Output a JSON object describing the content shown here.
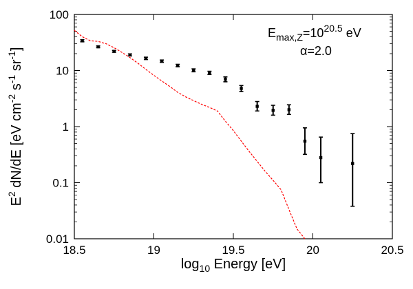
{
  "chart_data": {
    "type": "scatter",
    "xlabel_parts": {
      "main": "log",
      "sub": "10",
      "rest": " Energy [eV]"
    },
    "ylabel_parts": [
      {
        "t": "E",
        "sup": false
      },
      {
        "t": "2",
        "sup": true
      },
      {
        "t": " dN/dE [eV cm",
        "sup": false
      },
      {
        "t": "-2",
        "sup": true
      },
      {
        "t": " s",
        "sup": false
      },
      {
        "t": "-1",
        "sup": true
      },
      {
        "t": " sr",
        "sup": false
      },
      {
        "t": "-1",
        "sup": true
      },
      {
        "t": "]",
        "sup": false
      }
    ],
    "xlim": [
      18.5,
      20.5
    ],
    "ylim": [
      0.01,
      100
    ],
    "y_scale": "log",
    "x_ticks": [
      18.5,
      19,
      19.5,
      20,
      20.5
    ],
    "x_tick_labels": [
      "18.5",
      "19",
      "19.5",
      "20",
      "20.5"
    ],
    "y_ticks": [
      0.01,
      0.1,
      1,
      10,
      100
    ],
    "y_tick_labels": [
      "0.01",
      "0.1",
      "1",
      "10",
      "100"
    ],
    "annotation": {
      "line1": {
        "base": "E",
        "sub": "max,Z",
        "eq": "=10",
        "sup": "20.5",
        "tail": " eV"
      },
      "line2": "α=2.0"
    },
    "series": [
      {
        "kind": "points_with_errorbars",
        "color": "#000000",
        "points": [
          {
            "x": 18.55,
            "y": 34.0,
            "lo": 32.5,
            "hi": 35.5
          },
          {
            "x": 18.65,
            "y": 26.5,
            "lo": 25.5,
            "hi": 27.5
          },
          {
            "x": 18.75,
            "y": 22.0,
            "lo": 21.2,
            "hi": 22.8
          },
          {
            "x": 18.85,
            "y": 19.0,
            "lo": 18.2,
            "hi": 19.8
          },
          {
            "x": 18.95,
            "y": 16.5,
            "lo": 15.7,
            "hi": 17.3
          },
          {
            "x": 19.05,
            "y": 14.7,
            "lo": 14.0,
            "hi": 15.4
          },
          {
            "x": 19.15,
            "y": 12.3,
            "lo": 11.7,
            "hi": 12.9
          },
          {
            "x": 19.25,
            "y": 10.1,
            "lo": 9.5,
            "hi": 10.7
          },
          {
            "x": 19.35,
            "y": 9.1,
            "lo": 8.5,
            "hi": 9.7
          },
          {
            "x": 19.45,
            "y": 7.0,
            "lo": 6.3,
            "hi": 7.7
          },
          {
            "x": 19.55,
            "y": 4.8,
            "lo": 4.2,
            "hi": 5.4
          },
          {
            "x": 19.65,
            "y": 2.3,
            "lo": 1.9,
            "hi": 2.8
          },
          {
            "x": 19.75,
            "y": 1.95,
            "lo": 1.6,
            "hi": 2.4
          },
          {
            "x": 19.85,
            "y": 2.0,
            "lo": 1.65,
            "hi": 2.45
          },
          {
            "x": 19.95,
            "y": 0.55,
            "lo": 0.32,
            "hi": 0.95
          },
          {
            "x": 20.05,
            "y": 0.28,
            "lo": 0.1,
            "hi": 0.65
          },
          {
            "x": 20.25,
            "y": 0.22,
            "lo": 0.038,
            "hi": 0.75
          }
        ]
      },
      {
        "kind": "dashed_line",
        "color": "#ff0000",
        "x": [
          18.5,
          18.55,
          18.6,
          18.65,
          18.7,
          18.75,
          18.8,
          18.85,
          18.9,
          18.95,
          19.0,
          19.05,
          19.1,
          19.15,
          19.2,
          19.25,
          19.3,
          19.35,
          19.4,
          19.45,
          19.5,
          19.55,
          19.6,
          19.65,
          19.7,
          19.75,
          19.8,
          19.85,
          19.9,
          19.95
        ],
        "y": [
          52,
          40,
          34,
          33,
          30,
          25.5,
          21,
          17,
          13.5,
          10.5,
          8.2,
          6.5,
          5.2,
          4.1,
          3.4,
          2.9,
          2.5,
          2.2,
          1.9,
          1.25,
          0.85,
          0.55,
          0.36,
          0.24,
          0.16,
          0.11,
          0.075,
          0.033,
          0.015,
          0.01
        ]
      }
    ]
  }
}
